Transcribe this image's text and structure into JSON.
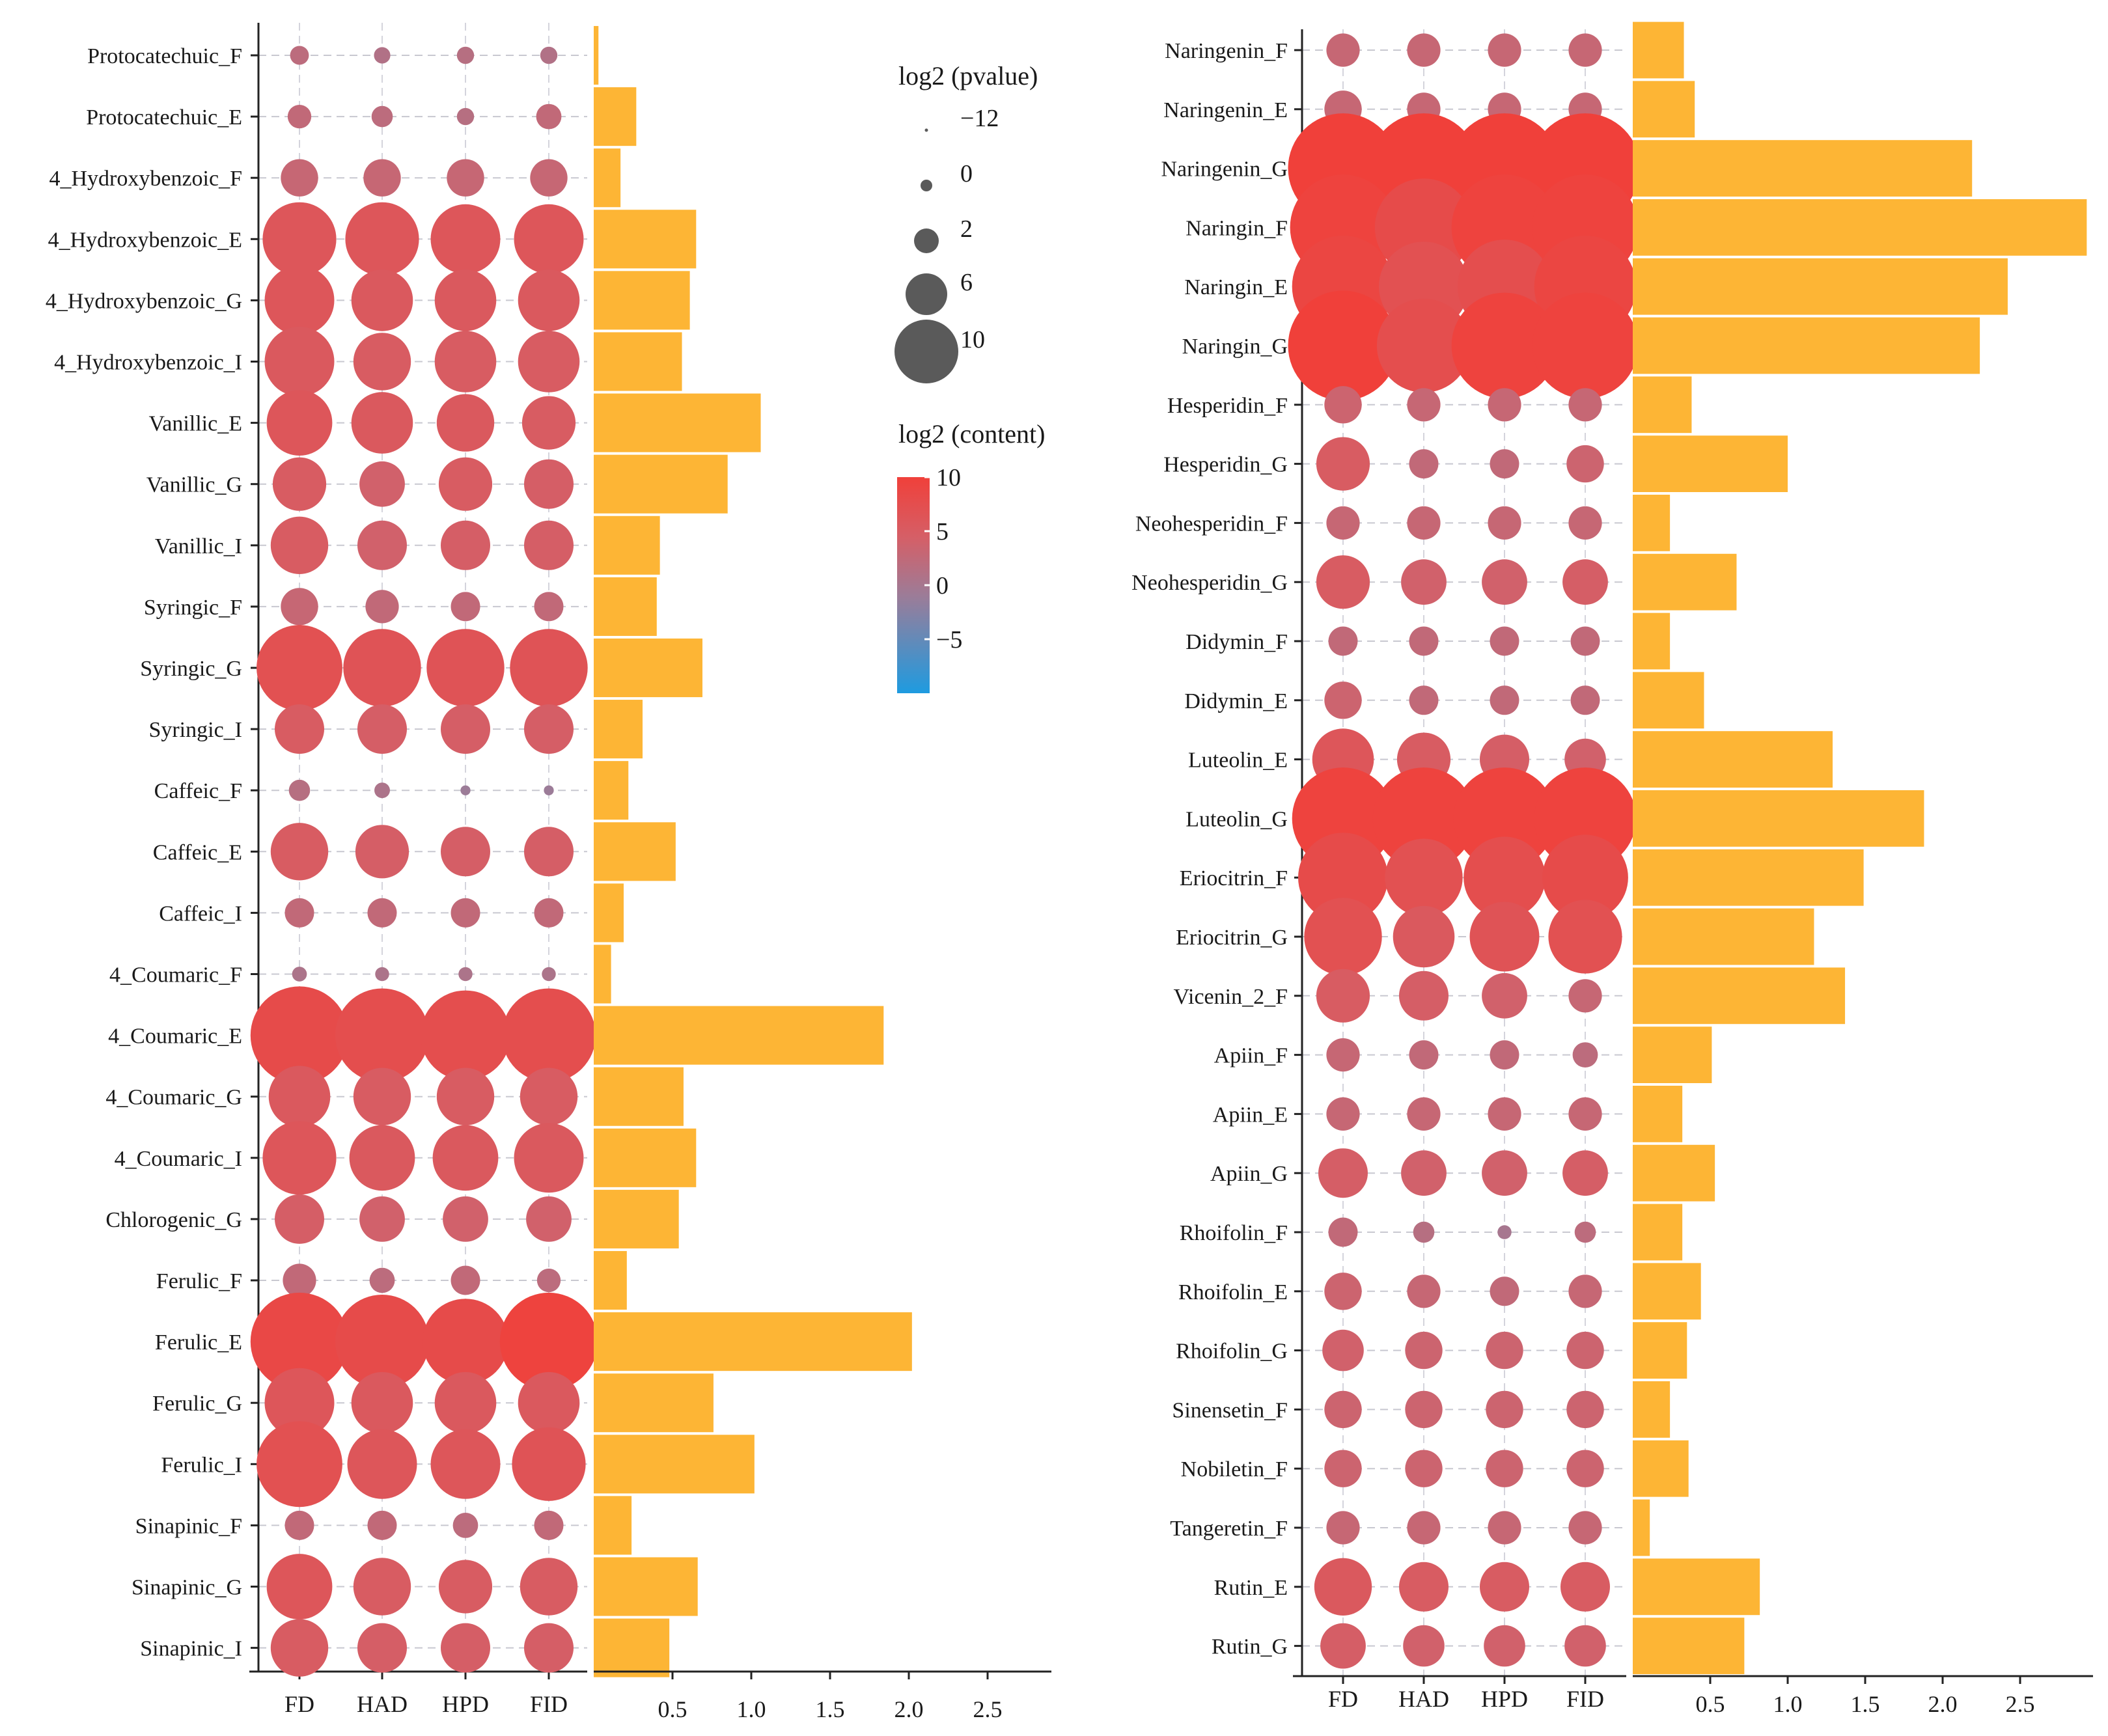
{
  "chart_data": [
    {
      "type": "dot-plot + bar",
      "dot_columns": [
        "FD",
        "HAD",
        "HPD",
        "FID"
      ],
      "bar_xticks": [
        "0.5",
        "1.0",
        "1.5",
        "2.0",
        "2.5"
      ],
      "bar_xlim": [
        0,
        2.95
      ],
      "bar_color": "#FDB535",
      "rows": [
        {
          "label": "Protocatechuic_F",
          "size": [
            1.2,
            0.9,
            1.0,
            1.0
          ],
          "color": [
            2,
            1,
            1.5,
            1
          ],
          "bar": 0.03
        },
        {
          "label": "Protocatechuic_E",
          "size": [
            1.8,
            1.5,
            1.0,
            2.0
          ],
          "color": [
            2.5,
            2,
            1.5,
            2.5
          ],
          "bar": 0.27
        },
        {
          "label": "4_Hydroxybenzoic_F",
          "size": [
            3.5,
            3.5,
            3.5,
            3.5
          ],
          "color": [
            3,
            3,
            3,
            3
          ],
          "bar": 0.17
        },
        {
          "label": "4_Hydroxybenzoic_E",
          "size": [
            8,
            8,
            7.5,
            7.5
          ],
          "color": [
            6,
            6,
            6,
            6
          ],
          "bar": 0.65
        },
        {
          "label": "4_Hydroxybenzoic_G",
          "size": [
            7.5,
            6.5,
            6.5,
            6.5
          ],
          "color": [
            6,
            5.5,
            5.5,
            5.5
          ],
          "bar": 0.61
        },
        {
          "label": "4_Hydroxybenzoic_I",
          "size": [
            7.5,
            6,
            6.5,
            6.5
          ],
          "color": [
            5.5,
            5,
            5,
            5
          ],
          "bar": 0.56
        },
        {
          "label": "Vanillic_E",
          "size": [
            7,
            6.5,
            6,
            5.5
          ],
          "color": [
            6,
            5.5,
            5.5,
            5
          ],
          "bar": 1.06
        },
        {
          "label": "Vanillic_G",
          "size": [
            5.5,
            4.5,
            5.5,
            5
          ],
          "color": [
            5,
            4,
            5,
            4.5
          ],
          "bar": 0.85
        },
        {
          "label": "Vanillic_I",
          "size": [
            6,
            5,
            5,
            5
          ],
          "color": [
            5,
            4,
            4.5,
            4.5
          ],
          "bar": 0.42
        },
        {
          "label": "Syringic_F",
          "size": [
            3.5,
            3,
            2.5,
            2.5
          ],
          "color": [
            3,
            2.5,
            2.5,
            2.5
          ],
          "bar": 0.4
        },
        {
          "label": "Syringic_G",
          "size": [
            9.5,
            8.5,
            8.5,
            8.5
          ],
          "color": [
            7,
            6.5,
            6.5,
            6.5
          ],
          "bar": 0.69
        },
        {
          "label": "Syringic_I",
          "size": [
            5,
            5,
            5,
            5
          ],
          "color": [
            5,
            4.5,
            4.5,
            4.5
          ],
          "bar": 0.31
        },
        {
          "label": "Caffeic_F",
          "size": [
            1.5,
            0.8,
            0.1,
            0.1
          ],
          "color": [
            1.5,
            0.5,
            -1,
            -1
          ],
          "bar": 0.22
        },
        {
          "label": "Caffeic_E",
          "size": [
            6,
            5.5,
            5,
            5
          ],
          "color": [
            5,
            4.5,
            4.5,
            4.5
          ],
          "bar": 0.52
        },
        {
          "label": "Caffeic_I",
          "size": [
            2.5,
            2.5,
            2.5,
            2.5
          ],
          "color": [
            2.5,
            2.5,
            2.5,
            2.5
          ],
          "bar": 0.19
        },
        {
          "label": "4_Coumaric_F",
          "size": [
            0.7,
            0.6,
            0.6,
            0.6
          ],
          "color": [
            0.5,
            0.5,
            0.5,
            0.5
          ],
          "bar": 0.11
        },
        {
          "label": "4_Coumaric_E",
          "size": [
            11,
            10.5,
            10,
            10.5
          ],
          "color": [
            8,
            7.5,
            7.5,
            7.5
          ],
          "bar": 1.84
        },
        {
          "label": "4_Coumaric_G",
          "size": [
            6.5,
            6,
            6,
            6
          ],
          "color": [
            5.5,
            5,
            5,
            5
          ],
          "bar": 0.57
        },
        {
          "label": "4_Coumaric_I",
          "size": [
            8,
            7,
            7,
            7.5
          ],
          "color": [
            6,
            5.5,
            5.5,
            5.5
          ],
          "bar": 0.65
        },
        {
          "label": "Chlorogenic_G",
          "size": [
            5,
            4.5,
            4.5,
            4.5
          ],
          "color": [
            4.5,
            4,
            4,
            4
          ],
          "bar": 0.54
        },
        {
          "label": "Ferulic_F",
          "size": [
            3,
            2,
            2.5,
            1.8
          ],
          "color": [
            2.5,
            2,
            2.5,
            2
          ],
          "bar": 0.21
        },
        {
          "label": "Ferulic_E",
          "size": [
            11,
            10.5,
            9.5,
            11
          ],
          "color": [
            8.5,
            8,
            8,
            9.5
          ],
          "bar": 2.02
        },
        {
          "label": "Ferulic_G",
          "size": [
            7.5,
            6.5,
            6.5,
            6.5
          ],
          "color": [
            6,
            5.5,
            5.5,
            5.5
          ],
          "bar": 0.76
        },
        {
          "label": "Ferulic_I",
          "size": [
            9.5,
            7.5,
            7.5,
            8
          ],
          "color": [
            7,
            6,
            6,
            6.5
          ],
          "bar": 1.02
        },
        {
          "label": "Sinapinic_F",
          "size": [
            2.5,
            2.5,
            2,
            2.5
          ],
          "color": [
            2.5,
            2.5,
            2,
            2.5
          ],
          "bar": 0.24
        },
        {
          "label": "Sinapinic_G",
          "size": [
            7,
            6,
            5.5,
            6
          ],
          "color": [
            6,
            5,
            5,
            5
          ],
          "bar": 0.66
        },
        {
          "label": "Sinapinic_I",
          "size": [
            6,
            5,
            5,
            5
          ],
          "color": [
            5,
            4.5,
            4.5,
            4.5
          ],
          "bar": 0.48
        }
      ]
    },
    {
      "type": "dot-plot + bar",
      "dot_columns": [
        "FD",
        "HAD",
        "HPD",
        "FID"
      ],
      "bar_xticks": [
        "0.5",
        "1.0",
        "1.5",
        "2.0",
        "2.5"
      ],
      "bar_xlim": [
        0,
        2.95
      ],
      "bar_color": "#FDB535",
      "rows": [
        {
          "label": "Naringenin_F",
          "size": [
            3,
            3,
            3,
            3
          ],
          "color": [
            3,
            3,
            3,
            3
          ],
          "bar": 0.33
        },
        {
          "label": "Naringenin_E",
          "size": [
            3.5,
            3,
            3,
            3
          ],
          "color": [
            3,
            3,
            3,
            3
          ],
          "bar": 0.4
        },
        {
          "label": "Naringenin_G",
          "size": [
            12.5,
            12.5,
            12.5,
            12.5
          ],
          "color": [
            10,
            10,
            10,
            10
          ],
          "bar": 2.19
        },
        {
          "label": "Naringin_F",
          "size": [
            12,
            11,
            12,
            12
          ],
          "color": [
            9.5,
            8,
            9.5,
            9.5
          ],
          "bar": 2.93
        },
        {
          "label": "Naringin_E",
          "size": [
            11.5,
            10,
            10.5,
            11.5
          ],
          "color": [
            9,
            7,
            7.5,
            9
          ],
          "bar": 2.42
        },
        {
          "label": "Naringin_G",
          "size": [
            12.5,
            10.5,
            12,
            12
          ],
          "color": [
            10,
            7.5,
            9.5,
            9.5
          ],
          "bar": 2.24
        },
        {
          "label": "Hesperidin_F",
          "size": [
            3.5,
            3,
            3,
            3
          ],
          "color": [
            3.5,
            3,
            3,
            3
          ],
          "bar": 0.38
        },
        {
          "label": "Hesperidin_G",
          "size": [
            5.5,
            2.5,
            2.5,
            3.5
          ],
          "color": [
            5,
            2.5,
            2.5,
            3.5
          ],
          "bar": 1.0
        },
        {
          "label": "Neohesperidin_F",
          "size": [
            3,
            3,
            3,
            3
          ],
          "color": [
            3,
            3,
            3,
            3
          ],
          "bar": 0.24
        },
        {
          "label": "Neohesperidin_G",
          "size": [
            5.5,
            4.5,
            4.5,
            4.5
          ],
          "color": [
            5,
            4,
            4,
            4.5
          ],
          "bar": 0.67
        },
        {
          "label": "Didymin_F",
          "size": [
            2.5,
            2.5,
            2.5,
            2.5
          ],
          "color": [
            2.5,
            2.5,
            2.5,
            2.5
          ],
          "bar": 0.24
        },
        {
          "label": "Didymin_E",
          "size": [
            3.5,
            2.5,
            2.5,
            2.5
          ],
          "color": [
            3.5,
            2.5,
            2.5,
            2.5
          ],
          "bar": 0.46
        },
        {
          "label": "Luteolin_E",
          "size": [
            6.5,
            5.5,
            5,
            4
          ],
          "color": [
            6,
            5,
            4.5,
            4
          ],
          "bar": 1.29
        },
        {
          "label": "Luteolin_G",
          "size": [
            11.5,
            11.5,
            11.5,
            11.5
          ],
          "color": [
            9.5,
            9.5,
            9.5,
            9.5
          ],
          "bar": 1.88
        },
        {
          "label": "Eriocitrin_F",
          "size": [
            10,
            8.5,
            9,
            9.5
          ],
          "color": [
            8,
            7,
            7.5,
            8
          ],
          "bar": 1.49
        },
        {
          "label": "Eriocitrin_G",
          "size": [
            8.5,
            6.5,
            7.5,
            8
          ],
          "color": [
            7,
            5.5,
            6.5,
            7
          ],
          "bar": 1.17
        },
        {
          "label": "Vicenin_2_F",
          "size": [
            5.5,
            5,
            4.5,
            3
          ],
          "color": [
            5,
            4.5,
            4,
            3
          ],
          "bar": 1.37
        },
        {
          "label": "Apiin_F",
          "size": [
            3,
            2.5,
            2.5,
            2
          ],
          "color": [
            3,
            2.5,
            2.5,
            2
          ],
          "bar": 0.51
        },
        {
          "label": "Apiin_E",
          "size": [
            3,
            3,
            3,
            3
          ],
          "color": [
            3,
            3,
            3,
            3
          ],
          "bar": 0.32
        },
        {
          "label": "Apiin_G",
          "size": [
            5,
            4.5,
            4.5,
            4.5
          ],
          "color": [
            4.5,
            4,
            4,
            4.5
          ],
          "bar": 0.53
        },
        {
          "label": "Rhoifolin_F",
          "size": [
            2.5,
            1.5,
            0.6,
            1.5
          ],
          "color": [
            2.5,
            1.5,
            0,
            2
          ],
          "bar": 0.32
        },
        {
          "label": "Rhoifolin_E",
          "size": [
            3.5,
            3,
            2.5,
            3
          ],
          "color": [
            3.5,
            3,
            2.5,
            3
          ],
          "bar": 0.44
        },
        {
          "label": "Rhoifolin_G",
          "size": [
            4,
            3.5,
            3.5,
            3.5
          ],
          "color": [
            4,
            3.5,
            3.5,
            3.5
          ],
          "bar": 0.35
        },
        {
          "label": "Sinensetin_F",
          "size": [
            3.5,
            3.5,
            3.5,
            3.5
          ],
          "color": [
            3.5,
            3.5,
            3.5,
            3.5
          ],
          "bar": 0.24
        },
        {
          "label": "Nobiletin_F",
          "size": [
            3.5,
            3.5,
            3.5,
            3.5
          ],
          "color": [
            3.5,
            3.5,
            3.5,
            3.5
          ],
          "bar": 0.36
        },
        {
          "label": "Tangeretin_F",
          "size": [
            3,
            3,
            3,
            3
          ],
          "color": [
            3,
            3,
            3,
            3
          ],
          "bar": 0.11
        },
        {
          "label": "Rutin_E",
          "size": [
            6,
            5,
            5,
            5
          ],
          "color": [
            5.5,
            5,
            5,
            5
          ],
          "bar": 0.82
        },
        {
          "label": "Rutin_G",
          "size": [
            4.5,
            4,
            4,
            4
          ],
          "color": [
            4.5,
            4,
            4,
            4
          ],
          "bar": 0.72
        }
      ]
    }
  ],
  "legend": {
    "size_title": "log2 (pvalue)",
    "size_items": [
      {
        "label": "−12",
        "value": -12
      },
      {
        "label": "0",
        "value": 0
      },
      {
        "label": "2",
        "value": 2
      },
      {
        "label": "6",
        "value": 6
      },
      {
        "label": "10",
        "value": 10
      }
    ],
    "size_color": "#5a5a5a",
    "color_title": "log2 (content)",
    "color_ticks": [
      {
        "label": "10",
        "value": 10
      },
      {
        "label": "5",
        "value": 5
      },
      {
        "label": "0",
        "value": 0
      },
      {
        "label": "−5",
        "value": -5
      }
    ],
    "color_range": [
      -10,
      10
    ],
    "color_stops": [
      "#1E9BE0",
      "#9C7C98",
      "#D55F67",
      "#F0403A"
    ]
  }
}
